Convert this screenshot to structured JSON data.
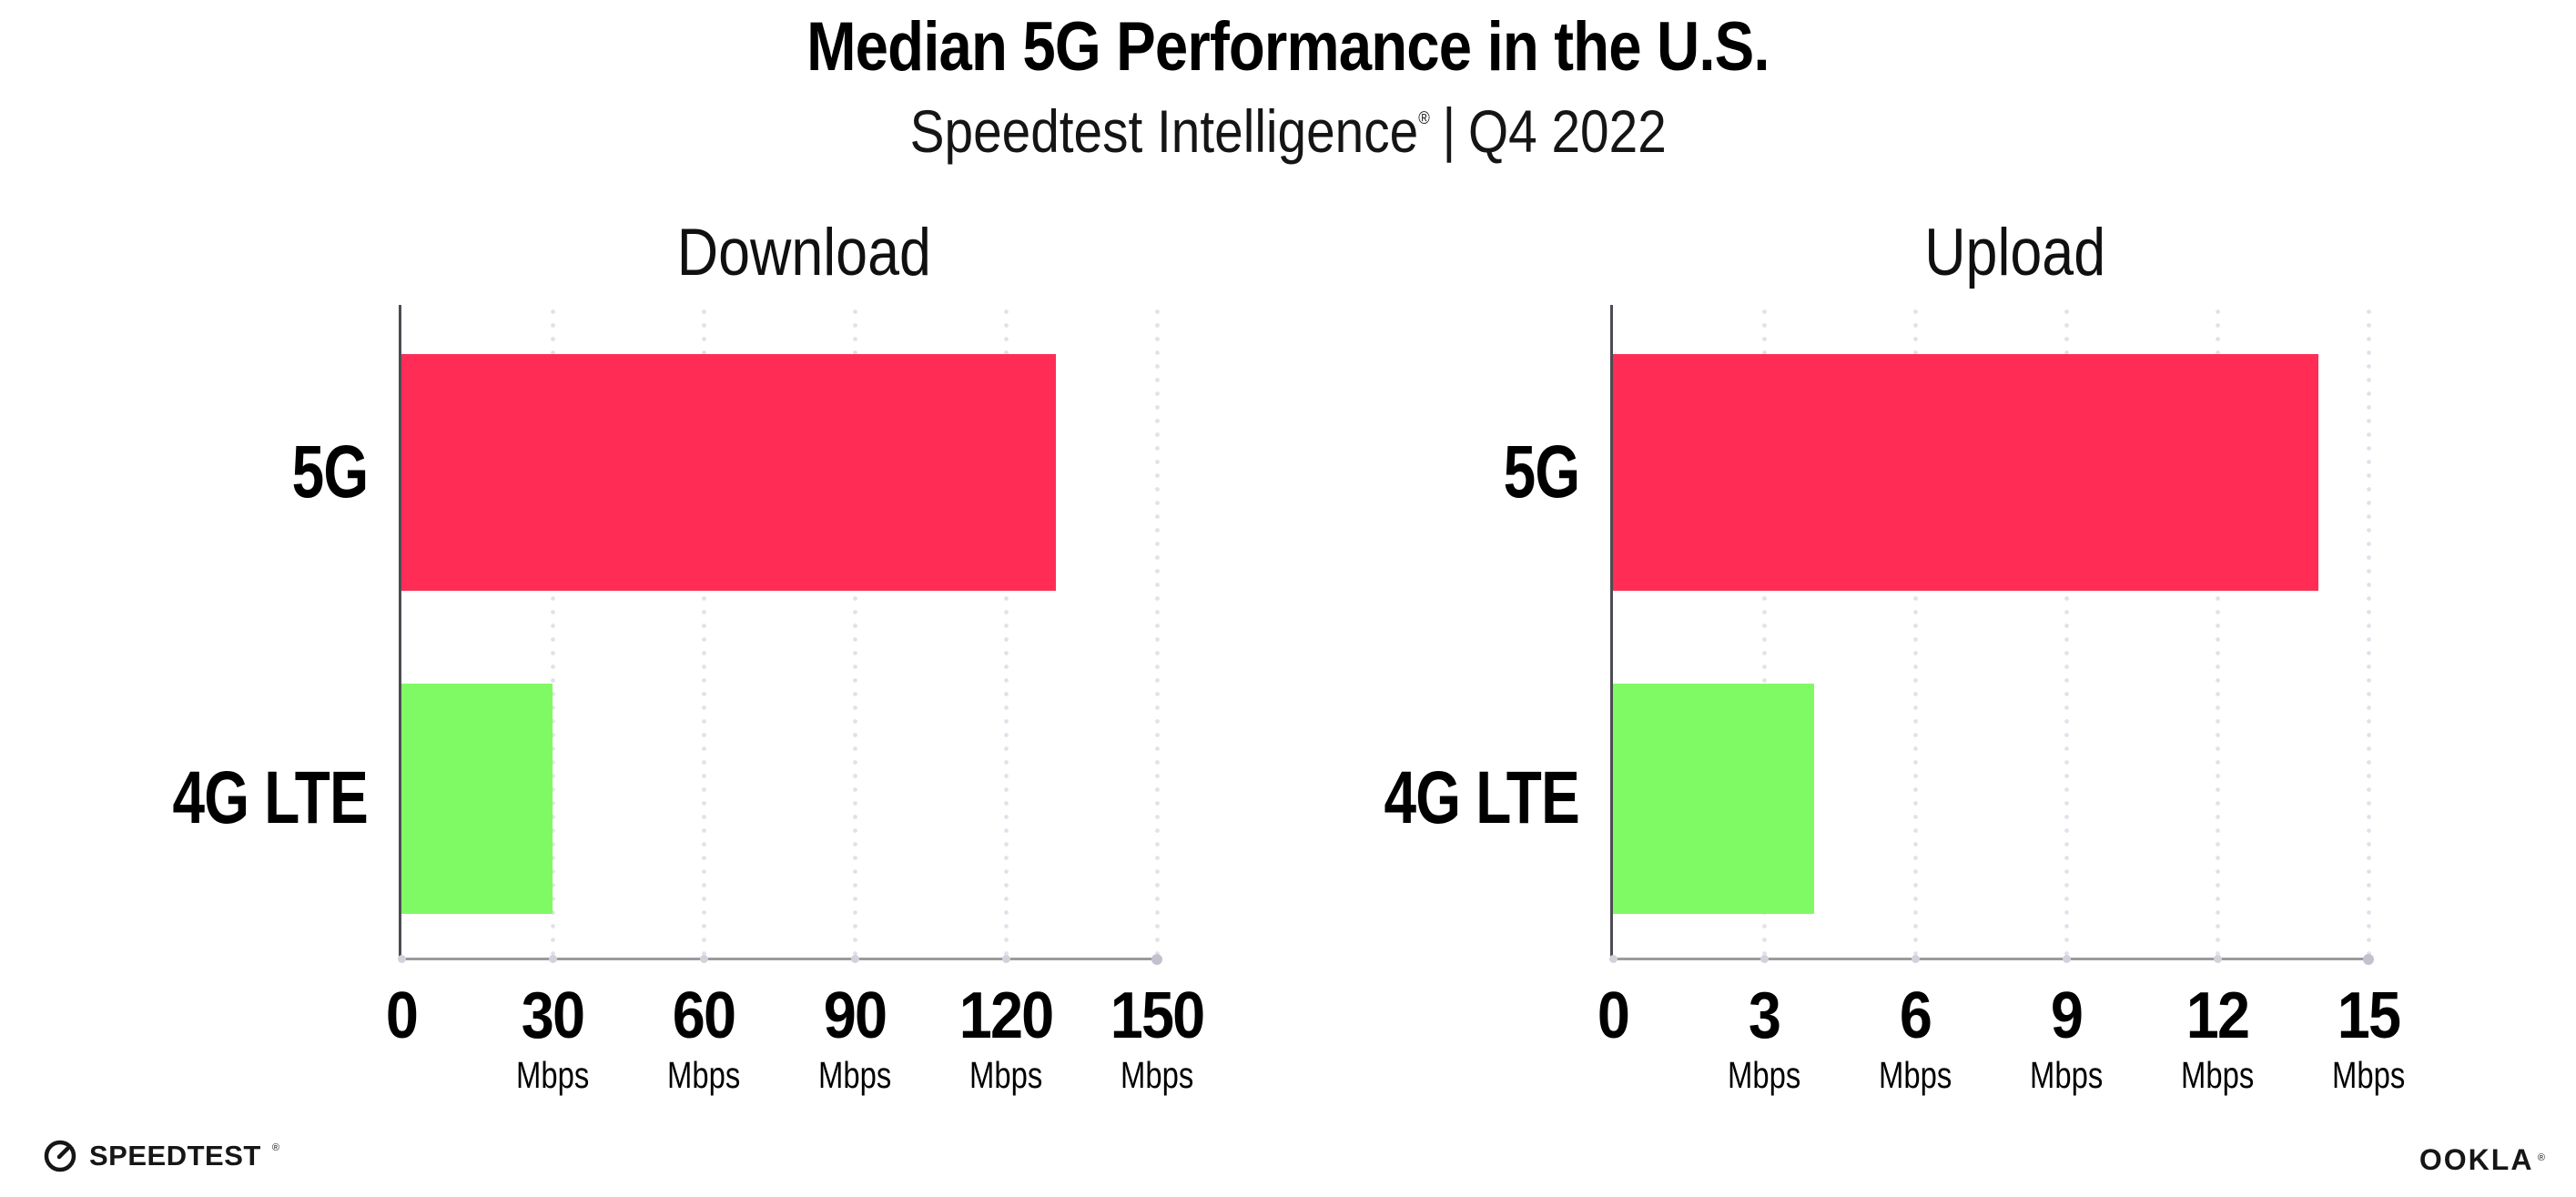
{
  "title": "Median 5G Performance in the U.S.",
  "subtitle": {
    "brand": "Speedtest Intelligence",
    "reg": "®",
    "separator": "|",
    "period": "Q4 2022"
  },
  "colors": {
    "bar_5g": "#ff2d55",
    "bar_4g_lte": "#80fa64",
    "gridline_dot": "#e1e1ea",
    "y_axis": "#4c4c52",
    "x_axis": "#9b9b9e",
    "text": "#000000"
  },
  "chart_data": [
    {
      "type": "bar",
      "orientation": "horizontal",
      "title": "Download",
      "categories": [
        "5G",
        "4G LTE"
      ],
      "values": [
        130,
        30
      ],
      "unit": "Mbps",
      "xlim": [
        0,
        150
      ],
      "xticks": [
        0,
        30,
        60,
        90,
        120,
        150
      ],
      "grid": "vertical-dotted",
      "legend": "none",
      "bar_colors": [
        "#ff2d55",
        "#80fa64"
      ]
    },
    {
      "type": "bar",
      "orientation": "horizontal",
      "title": "Upload",
      "categories": [
        "5G",
        "4G LTE"
      ],
      "values": [
        14,
        4
      ],
      "unit": "Mbps",
      "xlim": [
        0,
        15
      ],
      "xticks": [
        0,
        3,
        6,
        9,
        12,
        15
      ],
      "grid": "vertical-dotted",
      "legend": "none",
      "bar_colors": [
        "#ff2d55",
        "#80fa64"
      ]
    }
  ],
  "footer": {
    "speedtest_label": "SPEEDTEST",
    "speedtest_reg": "®",
    "ookla_label": "OOKLA",
    "ookla_reg": "®"
  }
}
